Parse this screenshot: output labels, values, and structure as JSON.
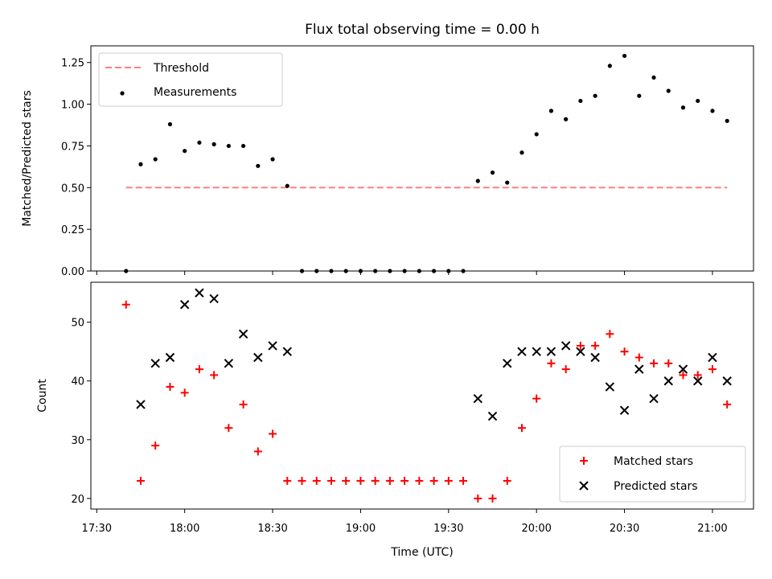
{
  "title": "Flux total observing time = 0.00 h",
  "colors": {
    "threshold": "#ff7f7f",
    "measurements": "#000000",
    "matched": "#ff0000",
    "predicted": "#000000"
  },
  "chart_data": [
    {
      "type": "scatter",
      "title": "Flux total observing time = 0.00 h",
      "xlabel": "",
      "ylabel": "Matched/Predicted stars",
      "xlim": [
        "17:28",
        "21:14"
      ],
      "ylim": [
        0,
        1.35
      ],
      "yticks": [
        "0.00",
        "0.25",
        "0.50",
        "0.75",
        "1.00",
        "1.25"
      ],
      "grid": false,
      "legend_position": "top-left",
      "series": [
        {
          "name": "Threshold",
          "kind": "line-dashed",
          "x": [
            "17:40",
            "21:05"
          ],
          "y": [
            0.5,
            0.5
          ]
        },
        {
          "name": "Measurements",
          "kind": "points",
          "x": [
            "17:40",
            "17:45",
            "17:50",
            "17:55",
            "18:00",
            "18:05",
            "18:10",
            "18:15",
            "18:20",
            "18:25",
            "18:30",
            "18:35",
            "18:40",
            "18:45",
            "18:50",
            "18:55",
            "19:00",
            "19:05",
            "19:10",
            "19:15",
            "19:20",
            "19:25",
            "19:30",
            "19:35",
            "19:40",
            "19:45",
            "19:50",
            "19:55",
            "20:00",
            "20:05",
            "20:10",
            "20:15",
            "20:20",
            "20:25",
            "20:30",
            "20:35",
            "20:40",
            "20:45",
            "20:50",
            "20:55",
            "21:00",
            "21:05"
          ],
          "y": [
            0.0,
            0.64,
            0.67,
            0.88,
            0.72,
            0.77,
            0.76,
            0.75,
            0.75,
            0.63,
            0.67,
            0.51,
            0.0,
            0.0,
            0.0,
            0.0,
            0.0,
            0.0,
            0.0,
            0.0,
            0.0,
            0.0,
            0.0,
            0.0,
            0.54,
            0.59,
            0.53,
            0.71,
            0.82,
            0.96,
            0.91,
            1.02,
            1.05,
            1.23,
            1.29,
            1.05,
            1.16,
            1.08,
            0.98,
            1.02,
            0.96,
            0.9
          ]
        }
      ]
    },
    {
      "type": "scatter",
      "xlabel": "Time (UTC)",
      "ylabel": "Count",
      "xlim": [
        "17:28",
        "21:14"
      ],
      "xticks": [
        "17:30",
        "18:00",
        "18:30",
        "19:00",
        "19:30",
        "20:00",
        "20:30",
        "21:00"
      ],
      "ylim": [
        18.2,
        56.8
      ],
      "yticks": [
        "20",
        "30",
        "40",
        "50"
      ],
      "grid": false,
      "legend_position": "bottom-right",
      "series": [
        {
          "name": "Matched stars",
          "marker": "plus",
          "x": [
            "17:40",
            "17:45",
            "17:50",
            "17:55",
            "18:00",
            "18:05",
            "18:10",
            "18:15",
            "18:20",
            "18:25",
            "18:30",
            "18:35",
            "18:40",
            "18:45",
            "18:50",
            "18:55",
            "19:00",
            "19:05",
            "19:10",
            "19:15",
            "19:20",
            "19:25",
            "19:30",
            "19:35",
            "19:40",
            "19:45",
            "19:50",
            "19:55",
            "20:00",
            "20:05",
            "20:10",
            "20:15",
            "20:20",
            "20:25",
            "20:30",
            "20:35",
            "20:40",
            "20:45",
            "20:50",
            "20:55",
            "21:00",
            "21:05"
          ],
          "y": [
            53,
            23,
            29,
            39,
            38,
            42,
            41,
            32,
            36,
            28,
            31,
            23,
            23,
            23,
            23,
            23,
            23,
            23,
            23,
            23,
            23,
            23,
            23,
            23,
            20,
            20,
            23,
            32,
            37,
            43,
            42,
            46,
            46,
            48,
            45,
            44,
            43,
            43,
            41,
            41,
            42,
            36
          ]
        },
        {
          "name": "Predicted stars",
          "marker": "x",
          "x": [
            "17:45",
            "17:50",
            "17:55",
            "18:00",
            "18:05",
            "18:10",
            "18:15",
            "18:20",
            "18:25",
            "18:30",
            "18:35",
            "19:40",
            "19:45",
            "19:50",
            "19:55",
            "20:00",
            "20:05",
            "20:10",
            "20:15",
            "20:20",
            "20:25",
            "20:30",
            "20:35",
            "20:40",
            "20:45",
            "20:50",
            "20:55",
            "21:00",
            "21:05"
          ],
          "y": [
            36,
            43,
            44,
            53,
            55,
            54,
            43,
            48,
            44,
            46,
            45,
            37,
            34,
            43,
            45,
            45,
            45,
            46,
            45,
            44,
            39,
            35,
            42,
            37,
            40,
            42,
            40,
            44,
            40
          ]
        }
      ]
    }
  ]
}
